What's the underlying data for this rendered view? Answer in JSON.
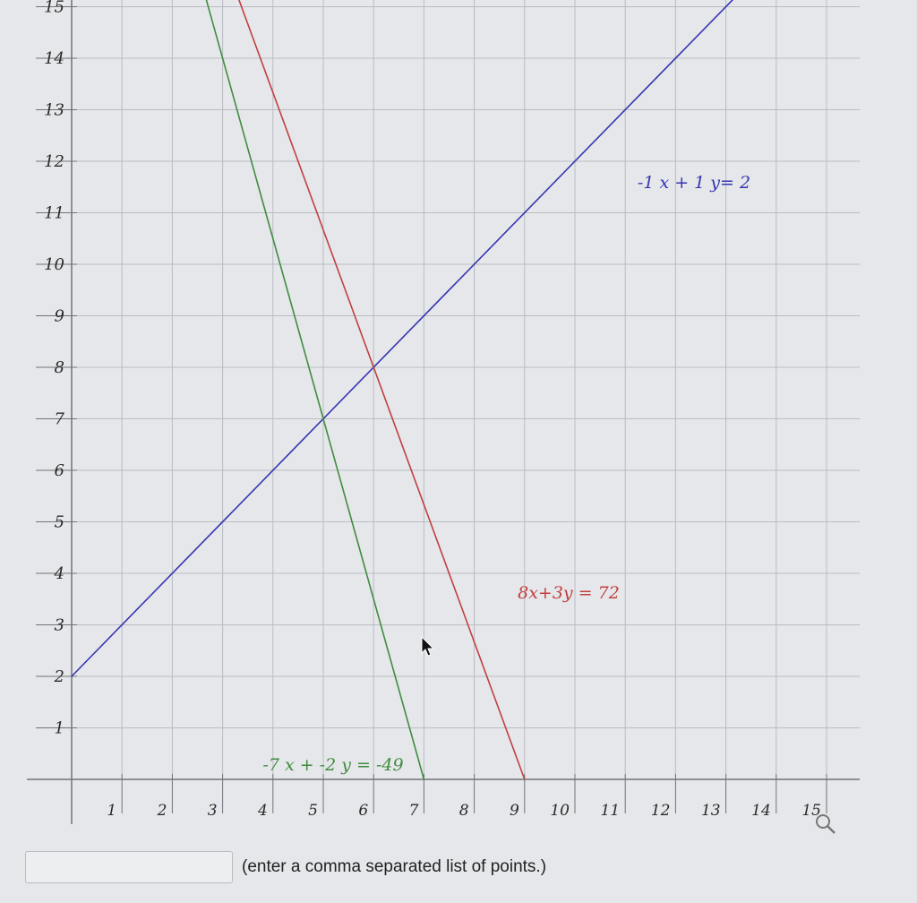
{
  "graph": {
    "x_tick_labels": [
      "1",
      "2",
      "3",
      "4",
      "5",
      "6",
      "7",
      "8",
      "9",
      "10",
      "11",
      "12",
      "13",
      "14",
      "15"
    ],
    "y_tick_labels": [
      "1",
      "2",
      "3",
      "4",
      "5",
      "6",
      "7",
      "8",
      "9",
      "10",
      "11",
      "12",
      "13",
      "14",
      "15"
    ],
    "lines": [
      {
        "label": "-1 x + 1 y= 2",
        "a": -1,
        "b": 1,
        "c": 2,
        "color": "#3535b0"
      },
      {
        "label": "8x+3y = 72",
        "a": 8,
        "b": 3,
        "c": 72,
        "color": "#c04040"
      },
      {
        "label": "-7 x + -2 y = -49",
        "a": -7,
        "b": -2,
        "c": -49,
        "color": "#3f8c3f"
      }
    ],
    "x_range": [
      0,
      15
    ],
    "y_range": [
      0,
      15
    ],
    "grid": true
  },
  "answer": {
    "value": "",
    "hint": "(enter a comma separated list of points.)"
  },
  "icons": {
    "zoom": "magnifier-icon",
    "cursor": "pointer-cursor-icon"
  }
}
